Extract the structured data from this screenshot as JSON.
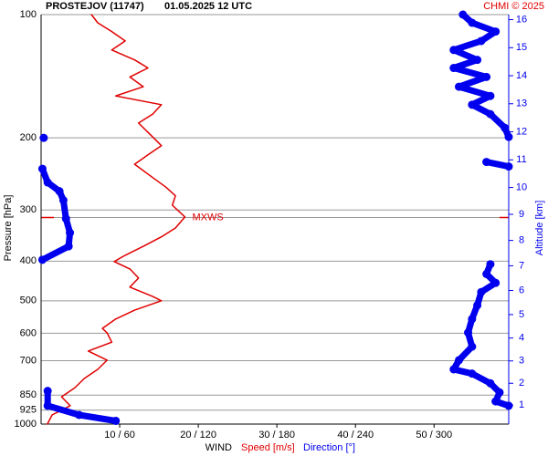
{
  "chart_data": {
    "type": "wind-profile",
    "title": "PROSTEJOV (11747)",
    "subtitle": "01.05.2025 12 UTC",
    "credit": "CHMI © 2025",
    "y_label": "Pressure [hPa]",
    "y2_label": "Altitude [km]",
    "x_label": "WIND",
    "ylim": [
      100,
      1000
    ],
    "log_y": true,
    "yticks": [
      100,
      200,
      300,
      400,
      500,
      600,
      700,
      850,
      925,
      1000
    ],
    "y2ticks": [
      1,
      2,
      3,
      4,
      5,
      6,
      7,
      8,
      9,
      10,
      11,
      12,
      13,
      14,
      15,
      16
    ],
    "xlim": [
      0,
      59.5
    ],
    "x2lim": [
      0,
      357
    ],
    "xticks": [
      {
        "value": 10,
        "label": "10 / 60"
      },
      {
        "value": 20,
        "label": "20 / 120"
      },
      {
        "value": 30,
        "label": "30 / 180"
      },
      {
        "value": 40,
        "label": "40 / 240"
      },
      {
        "value": 50,
        "label": "50 / 300"
      }
    ],
    "grid": true,
    "max_wind": {
      "label": "MXWS",
      "pressure": 313
    },
    "series": [
      {
        "name": "Speed [m/s]",
        "color": "#e00000",
        "axis": "x",
        "pressure": [
          100,
          104.7,
          110,
          116,
          122,
          129,
          135,
          142,
          150,
          158,
          166,
          175,
          184,
          199,
          209,
          220,
          232,
          250,
          264,
          277,
          292,
          312,
          332,
          349,
          368,
          387,
          401,
          418,
          440,
          463,
          488,
          500,
          527,
          554,
          584,
          599,
          631,
          663,
          698,
          735,
          774,
          815,
          858,
          902,
          950,
          1000
        ],
        "values": [
          6.4,
          7.2,
          9.0,
          10.7,
          9.0,
          11.9,
          13.6,
          11.3,
          13.0,
          9.5,
          15.3,
          14.2,
          12.4,
          14.2,
          15.3,
          13.6,
          11.9,
          14.2,
          15.9,
          17.1,
          16.7,
          18.3,
          17.1,
          15.3,
          13.0,
          10.7,
          9.3,
          11.3,
          12.4,
          11.3,
          14.2,
          15.3,
          11.9,
          9.5,
          7.8,
          8.4,
          9.0,
          6.0,
          8.4,
          7.2,
          5.5,
          4.3,
          2.6,
          3.7,
          1.4,
          0.8
        ]
      },
      {
        "name": "Direction [°]",
        "color": "#0000ee",
        "axis": "x2",
        "pressure": [
          100,
          104.7,
          110,
          116,
          122,
          129,
          135,
          142,
          150,
          158,
          166,
          175,
          189,
          199,
          null,
          200,
          null,
          229,
          235,
          null,
          238,
          257,
          270,
          284,
          315,
          341,
          368,
          397,
          null,
          407,
          430,
          452,
          476,
          513,
          554,
          598,
          647,
          698,
          735,
          753,
          795,
          837,
          880,
          902,
          null,
          830,
          902,
          950,
          982
        ],
        "values": [
          322,
          329,
          347,
          336,
          315,
          333,
          315,
          340,
          319,
          343,
          329,
          343,
          354,
          357,
          null,
          2,
          null,
          340,
          357,
          null,
          1,
          5,
          14,
          17,
          19,
          22,
          21,
          1,
          null,
          343,
          340,
          347,
          336,
          333,
          329,
          326,
          329,
          319,
          315,
          329,
          343,
          350,
          347,
          357,
          null,
          5,
          5,
          29,
          57
        ]
      }
    ]
  }
}
